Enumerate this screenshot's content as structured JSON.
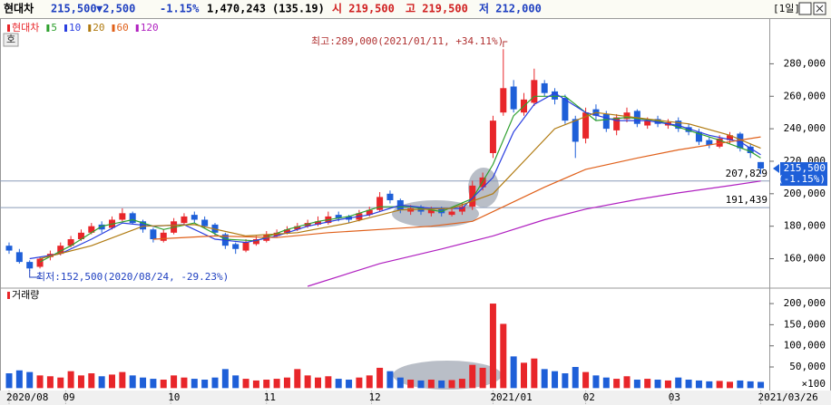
{
  "header": {
    "name": "현대차",
    "price": "215,500",
    "change": "▼2,500",
    "rate": "-1.15%",
    "volume": "1,470,243",
    "ratio": "(135.19)",
    "open": "시 219,500",
    "high": "고 219,500",
    "low": "저 212,000",
    "period": "[1일]",
    "button": "호"
  },
  "chart_data": {
    "type": "candlestick",
    "name": "현대차",
    "open": [
      168000,
      164000,
      158000,
      155000,
      161000,
      163000,
      168000,
      172000,
      176000,
      181000,
      179000,
      184000,
      188000,
      183000,
      178000,
      171000,
      176000,
      182000,
      187000,
      184000,
      181000,
      175000,
      169000,
      165000,
      169000,
      171000,
      174000,
      176000,
      178000,
      180000,
      181000,
      182000,
      187000,
      186000,
      184000,
      187000,
      190000,
      200000,
      196000,
      189000,
      192000,
      188000,
      191000,
      187000,
      189000,
      192000,
      204000,
      225000,
      250000,
      266000,
      250000,
      256000,
      268000,
      263000,
      259000,
      246000,
      234000,
      252000,
      249000,
      239000,
      246000,
      251000,
      242000,
      246000,
      242000,
      245000,
      241000,
      238000,
      233000,
      229000,
      233000,
      237000,
      229000,
      219500
    ],
    "high": [
      170000,
      166000,
      159000,
      161000,
      165000,
      170000,
      174000,
      178000,
      182000,
      183000,
      186000,
      191000,
      189000,
      184000,
      179000,
      178000,
      185000,
      188000,
      189000,
      186000,
      182000,
      176000,
      170000,
      172000,
      174000,
      177000,
      178000,
      180000,
      182000,
      184000,
      186000,
      189000,
      189000,
      187000,
      190000,
      192000,
      201000,
      202000,
      197000,
      193000,
      193000,
      192000,
      192000,
      191000,
      194000,
      208000,
      213000,
      248000,
      289000,
      270000,
      262000,
      277000,
      270000,
      265000,
      261000,
      248000,
      253000,
      255000,
      251000,
      249000,
      253000,
      252000,
      247000,
      248000,
      246000,
      247000,
      243000,
      240000,
      235000,
      236000,
      238000,
      238000,
      231000,
      219500
    ],
    "low": [
      163000,
      157000,
      152500,
      154000,
      159000,
      162000,
      167000,
      171000,
      175000,
      176000,
      178000,
      183000,
      181000,
      176000,
      170000,
      170000,
      175000,
      181000,
      182000,
      179000,
      174000,
      166000,
      163000,
      164000,
      168000,
      170000,
      173000,
      175000,
      177000,
      179000,
      180000,
      181000,
      183000,
      182000,
      183000,
      186000,
      189000,
      194000,
      188000,
      187000,
      187000,
      186000,
      186000,
      186000,
      187000,
      190000,
      202000,
      222000,
      248000,
      250000,
      248000,
      254000,
      260000,
      255000,
      243000,
      222000,
      231000,
      245000,
      238000,
      236000,
      244000,
      241000,
      240000,
      241000,
      240000,
      238000,
      236000,
      230000,
      228000,
      228000,
      231000,
      226000,
      222000,
      212000
    ],
    "close": [
      165000,
      158000,
      154000,
      160000,
      163000,
      168000,
      172000,
      176000,
      180000,
      178000,
      184000,
      188000,
      182000,
      178000,
      172000,
      176000,
      183000,
      186000,
      184000,
      180000,
      176000,
      168000,
      166000,
      170000,
      172000,
      175000,
      176000,
      178000,
      180000,
      182000,
      183000,
      186000,
      185000,
      184000,
      188000,
      190000,
      198000,
      196000,
      190000,
      191000,
      189000,
      190000,
      188000,
      189000,
      192000,
      205000,
      210000,
      245000,
      265000,
      252000,
      258000,
      270000,
      262000,
      258000,
      245000,
      232000,
      250000,
      248000,
      240000,
      247000,
      250000,
      243000,
      245000,
      243000,
      244000,
      240000,
      238000,
      232000,
      230000,
      234000,
      236000,
      228000,
      225000,
      215500
    ],
    "volume": [
      35000,
      42000,
      38000,
      30000,
      28000,
      25000,
      40000,
      30000,
      35000,
      28000,
      32000,
      38000,
      30000,
      25000,
      22000,
      20000,
      30000,
      25000,
      22000,
      20000,
      25000,
      45000,
      30000,
      22000,
      18000,
      20000,
      22000,
      25000,
      45000,
      30000,
      25000,
      28000,
      22000,
      20000,
      25000,
      30000,
      48000,
      40000,
      25000,
      20000,
      18000,
      20000,
      18000,
      19000,
      22000,
      55000,
      48000,
      200000,
      152000,
      75000,
      60000,
      70000,
      45000,
      40000,
      35000,
      50000,
      38000,
      30000,
      25000,
      22000,
      28000,
      20000,
      22000,
      20000,
      18000,
      25000,
      20000,
      18000,
      16000,
      17000,
      15000,
      18000,
      16000,
      14702
    ],
    "up_color": "#e8262a",
    "down_color": "#1e5fd8",
    "series": [
      {
        "name": "5",
        "color": "#2ea02e",
        "x": [
          3,
          6,
          9,
          12,
          15,
          18,
          21,
          24,
          27,
          30,
          33,
          36,
          39,
          42,
          45,
          47,
          49,
          51,
          54,
          57,
          60,
          63,
          66,
          69,
          72,
          73
        ],
        "values": [
          158000,
          168000,
          180000,
          184000,
          178000,
          182000,
          172000,
          171000,
          178000,
          183000,
          186000,
          192000,
          192000,
          189000,
          197000,
          218000,
          248000,
          260000,
          260000,
          245000,
          247000,
          245000,
          239000,
          233000,
          226000,
          222000
        ]
      },
      {
        "name": "10",
        "color": "#2a3fe0",
        "x": [
          2,
          5,
          8,
          11,
          14,
          17,
          20,
          23,
          26,
          29,
          32,
          35,
          38,
          41,
          44,
          47,
          49,
          51,
          53,
          56,
          59,
          62,
          65,
          68,
          71,
          73
        ],
        "values": [
          160000,
          163000,
          172000,
          182000,
          180000,
          181000,
          172000,
          170000,
          174000,
          180000,
          184000,
          187000,
          193000,
          191000,
          191000,
          210000,
          238000,
          255000,
          262000,
          250000,
          245000,
          245000,
          242000,
          236000,
          232000,
          224000
        ]
      },
      {
        "name": "20",
        "color": "#b07a10",
        "x": [
          3,
          8,
          13,
          18,
          23,
          28,
          33,
          38,
          43,
          47,
          50,
          53,
          57,
          62,
          66,
          70,
          73
        ],
        "values": [
          160000,
          168000,
          180000,
          181000,
          174000,
          176000,
          182000,
          190000,
          191000,
          200000,
          220000,
          240000,
          250000,
          246000,
          243000,
          236000,
          228000
        ]
      },
      {
        "name": "60",
        "color": "#e0601a",
        "x": [
          14,
          20,
          26,
          31,
          36,
          41,
          45,
          48,
          52,
          56,
          61,
          65,
          69,
          73
        ],
        "values": [
          172000,
          174000,
          173000,
          176000,
          178000,
          180000,
          183000,
          192000,
          204000,
          215000,
          222000,
          227000,
          231000,
          235000
        ]
      },
      {
        "name": "120",
        "color": "#b020c0",
        "x": [
          29,
          36,
          42,
          47,
          52,
          56,
          61,
          65,
          70,
          73
        ],
        "values": [
          143000,
          157000,
          166000,
          174000,
          184000,
          190500,
          196500,
          200500,
          205000,
          207829
        ]
      }
    ],
    "ylim": [
      143000,
      307000
    ],
    "yticks": [
      {
        "value": 160000,
        "label": "160,000"
      },
      {
        "value": 180000,
        "label": "180,000"
      },
      {
        "value": 200000,
        "label": "200,000"
      },
      {
        "value": 220000,
        "label": "220,000"
      },
      {
        "value": 240000,
        "label": "240,000"
      },
      {
        "value": 260000,
        "label": "260,000"
      },
      {
        "value": 280000,
        "label": "280,000"
      }
    ],
    "volume_label": "거래량",
    "volume_unit": "×100",
    "volume_ylim": [
      -5700,
      228000
    ],
    "volume_yticks": [
      {
        "value": 50000,
        "label": "50,000"
      },
      {
        "value": 100000,
        "label": "100,000"
      },
      {
        "value": 150000,
        "label": "150,000"
      },
      {
        "value": 200000,
        "label": "200,000"
      }
    ],
    "xticks": [
      {
        "value": 0,
        "label": "2020/08"
      },
      {
        "value": 5.5,
        "label": "09"
      },
      {
        "value": 15.7,
        "label": "10"
      },
      {
        "value": 25,
        "label": "11"
      },
      {
        "value": 35.2,
        "label": "12"
      },
      {
        "value": 47,
        "label": "2021/01"
      },
      {
        "value": 56,
        "label": "02"
      },
      {
        "value": 64.3,
        "label": "03"
      },
      {
        "value": 73,
        "label": "2021/03/26"
      }
    ],
    "hlines": [
      {
        "value": 207829,
        "label": "207,829"
      },
      {
        "value": 191439,
        "label": "191,439"
      }
    ],
    "current": {
      "value": 215500,
      "label": "215,500",
      "change": "(-1.15%)"
    },
    "annotations": [
      {
        "text": "최고:289,000(2021/01/11, +34.11%)"
      },
      {
        "text": "최저:152,500(2020/08/24, -29.23%)"
      }
    ]
  }
}
